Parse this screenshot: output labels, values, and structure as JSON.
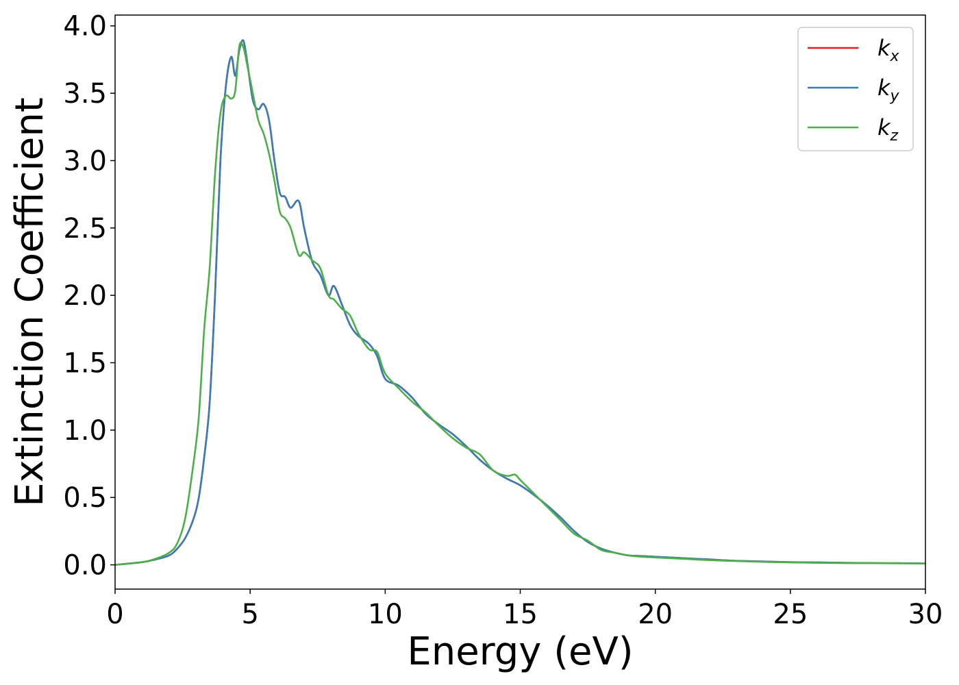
{
  "chart_data": {
    "type": "line",
    "title": "",
    "xlabel": "Energy (eV)",
    "ylabel": "Extinction Coefficient",
    "xlim": [
      0,
      30
    ],
    "ylim": [
      -0.18,
      4.08
    ],
    "xticks": [
      0,
      5,
      10,
      15,
      20,
      25,
      30
    ],
    "xtick_labels": [
      "0",
      "5",
      "10",
      "15",
      "20",
      "25",
      "30"
    ],
    "yticks": [
      0.0,
      0.5,
      1.0,
      1.5,
      2.0,
      2.5,
      3.0,
      3.5,
      4.0
    ],
    "ytick_labels": [
      "0.0",
      "0.5",
      "1.0",
      "1.5",
      "2.0",
      "2.5",
      "3.0",
      "3.5",
      "4.0"
    ],
    "grid": false,
    "legend_position": "top-right",
    "legend": [
      {
        "base": "k",
        "sub": "x",
        "color": "#e41a1c"
      },
      {
        "base": "k",
        "sub": "y",
        "color": "#377eb8"
      },
      {
        "base": "k",
        "sub": "z",
        "color": "#4daf4a"
      }
    ],
    "series": [
      {
        "name": "k_x",
        "color": "#e41a1c",
        "x": [
          0,
          1,
          1.5,
          2,
          2.3,
          2.6,
          2.9,
          3.1,
          3.3,
          3.5,
          3.7,
          3.9,
          4.1,
          4.3,
          4.45,
          4.6,
          4.75,
          4.9,
          5.1,
          5.3,
          5.5,
          5.7,
          5.9,
          6.1,
          6.3,
          6.5,
          6.8,
          7.0,
          7.3,
          7.6,
          7.9,
          8.1,
          8.4,
          8.7,
          9.0,
          9.4,
          9.7,
          10.0,
          10.5,
          11.0,
          11.5,
          12.0,
          12.5,
          13.0,
          13.5,
          14.0,
          14.5,
          15.0,
          15.5,
          16.0,
          16.5,
          17.0,
          17.5,
          18.0,
          18.5,
          19.0,
          19.5,
          20.0,
          21.0,
          22.0,
          23.0,
          24.0,
          25.0,
          26.0,
          27.0,
          28.0,
          29.0,
          30.0
        ],
        "y": [
          0.0,
          0.02,
          0.04,
          0.07,
          0.12,
          0.2,
          0.34,
          0.5,
          0.8,
          1.2,
          2.0,
          3.0,
          3.55,
          3.77,
          3.63,
          3.82,
          3.89,
          3.72,
          3.45,
          3.38,
          3.42,
          3.3,
          3.0,
          2.76,
          2.73,
          2.65,
          2.7,
          2.5,
          2.25,
          2.15,
          2.0,
          2.07,
          1.93,
          1.78,
          1.7,
          1.64,
          1.55,
          1.38,
          1.33,
          1.24,
          1.12,
          1.04,
          0.97,
          0.88,
          0.78,
          0.7,
          0.64,
          0.59,
          0.52,
          0.44,
          0.35,
          0.25,
          0.17,
          0.12,
          0.09,
          0.07,
          0.065,
          0.06,
          0.05,
          0.04,
          0.03,
          0.025,
          0.02,
          0.018,
          0.015,
          0.013,
          0.012,
          0.01
        ]
      },
      {
        "name": "k_y",
        "color": "#377eb8",
        "x": [
          0,
          1,
          1.5,
          2,
          2.3,
          2.6,
          2.9,
          3.1,
          3.3,
          3.5,
          3.7,
          3.9,
          4.1,
          4.3,
          4.45,
          4.6,
          4.75,
          4.9,
          5.1,
          5.3,
          5.5,
          5.7,
          5.9,
          6.1,
          6.3,
          6.5,
          6.8,
          7.0,
          7.3,
          7.6,
          7.9,
          8.1,
          8.4,
          8.7,
          9.0,
          9.4,
          9.7,
          10.0,
          10.5,
          11.0,
          11.5,
          12.0,
          12.5,
          13.0,
          13.5,
          14.0,
          14.5,
          15.0,
          15.5,
          16.0,
          16.5,
          17.0,
          17.5,
          18.0,
          18.5,
          19.0,
          19.5,
          20.0,
          21.0,
          22.0,
          23.0,
          24.0,
          25.0,
          26.0,
          27.0,
          28.0,
          29.0,
          30.0
        ],
        "y": [
          0.0,
          0.02,
          0.04,
          0.07,
          0.12,
          0.2,
          0.34,
          0.5,
          0.8,
          1.2,
          2.0,
          3.0,
          3.55,
          3.77,
          3.63,
          3.82,
          3.89,
          3.72,
          3.45,
          3.38,
          3.42,
          3.3,
          3.0,
          2.76,
          2.73,
          2.65,
          2.7,
          2.5,
          2.25,
          2.15,
          2.0,
          2.07,
          1.93,
          1.78,
          1.7,
          1.64,
          1.55,
          1.38,
          1.33,
          1.24,
          1.12,
          1.04,
          0.97,
          0.88,
          0.78,
          0.7,
          0.64,
          0.59,
          0.52,
          0.44,
          0.35,
          0.25,
          0.17,
          0.12,
          0.09,
          0.07,
          0.065,
          0.06,
          0.05,
          0.04,
          0.03,
          0.025,
          0.02,
          0.018,
          0.015,
          0.013,
          0.012,
          0.01
        ]
      },
      {
        "name": "k_z",
        "color": "#4daf4a",
        "x": [
          0,
          1,
          1.5,
          2,
          2.3,
          2.6,
          2.9,
          3.1,
          3.3,
          3.5,
          3.7,
          3.9,
          4.1,
          4.3,
          4.45,
          4.6,
          4.75,
          4.9,
          5.1,
          5.3,
          5.5,
          5.7,
          5.9,
          6.1,
          6.3,
          6.5,
          6.8,
          7.0,
          7.3,
          7.6,
          7.9,
          8.1,
          8.4,
          8.7,
          9.0,
          9.4,
          9.7,
          10.0,
          10.5,
          11.0,
          11.5,
          12.0,
          12.5,
          13.0,
          13.5,
          14.0,
          14.5,
          14.8,
          15.0,
          15.5,
          16.0,
          16.5,
          17.0,
          17.5,
          18.0,
          18.5,
          19.0,
          19.5,
          20.0,
          21.0,
          22.0,
          23.0,
          24.0,
          25.0,
          26.0,
          27.0,
          28.0,
          29.0,
          30.0
        ],
        "y": [
          0.0,
          0.02,
          0.045,
          0.09,
          0.16,
          0.35,
          0.75,
          1.1,
          1.75,
          2.2,
          2.9,
          3.35,
          3.48,
          3.46,
          3.52,
          3.85,
          3.84,
          3.7,
          3.5,
          3.3,
          3.2,
          3.05,
          2.85,
          2.62,
          2.57,
          2.5,
          2.3,
          2.32,
          2.26,
          2.2,
          2.0,
          1.97,
          1.9,
          1.85,
          1.72,
          1.6,
          1.58,
          1.42,
          1.31,
          1.21,
          1.13,
          1.03,
          0.94,
          0.87,
          0.82,
          0.7,
          0.66,
          0.67,
          0.63,
          0.53,
          0.43,
          0.33,
          0.23,
          0.18,
          0.11,
          0.09,
          0.07,
          0.06,
          0.055,
          0.045,
          0.035,
          0.028,
          0.022,
          0.018,
          0.015,
          0.013,
          0.012,
          0.011,
          0.01
        ]
      }
    ]
  }
}
